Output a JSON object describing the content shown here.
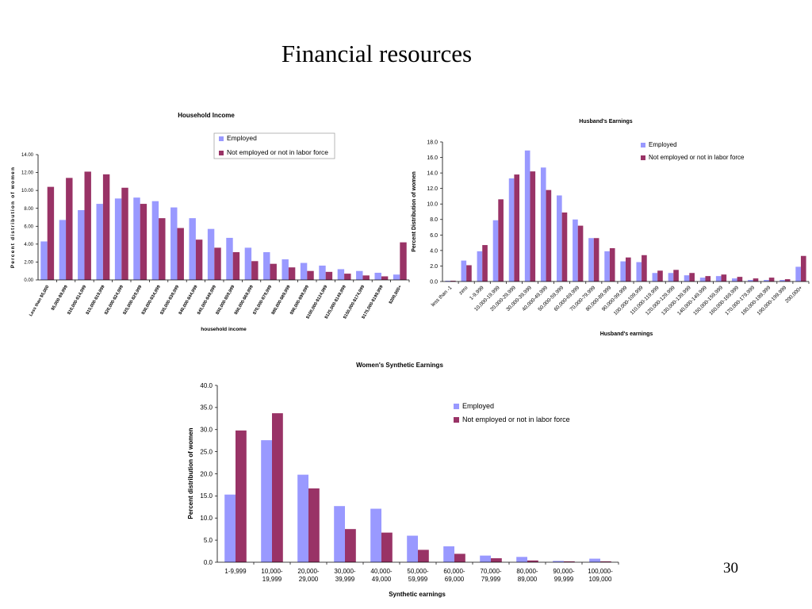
{
  "slide": {
    "title": "Financial resources",
    "page_number": "30"
  },
  "colors": {
    "employed": "#9999ff",
    "not_employed": "#993366",
    "axis": "#000000"
  },
  "chart_data": [
    {
      "id": "household-income",
      "type": "bar",
      "title": "Household Income",
      "xlabel": "household income",
      "ylabel": "Percent distribution of women",
      "ylim": [
        0,
        14
      ],
      "yticks": [
        "0.00",
        "2.00",
        "4.00",
        "6.00",
        "8.00",
        "10.00",
        "12.00",
        "14.00"
      ],
      "legend_position": "top-center",
      "categories": [
        "Less than $5,000",
        "$5,000-$9,999",
        "$10,000-$14,999",
        "$15,000-$19,999",
        "$20,000-$24,999",
        "$25,000-$29,999",
        "$30,000-$34,999",
        "$35,000-$39,999",
        "$40,000-$44,999",
        "$45,000-$49,999",
        "$50,000-$59,999",
        "$60,000-$69,999",
        "$70,000-$79,999",
        "$80,000-$89,999",
        "$90,000-$99,999",
        "$100,000-$124,999",
        "$125,000-$149,999",
        "$150,000-$174,999",
        "$175,000-$199,999",
        "$200,000+"
      ],
      "series": [
        {
          "name": "Employed",
          "values": [
            4.3,
            6.7,
            7.8,
            8.5,
            9.1,
            9.2,
            8.8,
            8.1,
            6.9,
            5.7,
            4.7,
            3.6,
            3.1,
            2.3,
            1.9,
            1.6,
            1.2,
            1.0,
            0.8,
            0.6
          ]
        },
        {
          "name": "Not employed or not in labor force",
          "values": [
            10.4,
            11.4,
            12.1,
            11.8,
            10.3,
            8.5,
            6.9,
            5.8,
            4.5,
            3.6,
            3.1,
            2.1,
            1.8,
            1.4,
            1.0,
            0.9,
            0.7,
            0.5,
            0.4,
            4.2
          ]
        }
      ]
    },
    {
      "id": "husbands-earnings",
      "type": "bar",
      "title": "Husband's Earnings",
      "xlabel": "Husband's earnings",
      "ylabel": "Percent Distribution of women",
      "ylim": [
        0,
        18
      ],
      "yticks": [
        "0.0",
        "2.0",
        "4.0",
        "6.0",
        "8.0",
        "10.0",
        "12.0",
        "14.0",
        "16.0",
        "18.0"
      ],
      "legend_position": "top-right",
      "categories": [
        "less than -1",
        "zero",
        "1-9,999",
        "10,000-19,999",
        "20,000-29,999",
        "30,000-39,999",
        "40,000-49,999",
        "50,000-59,999",
        "60,000-69,999",
        "70,000-79,999",
        "80,000-89,999",
        "90,000-99,999",
        "100,000-109,999",
        "110,000-119,999",
        "120,000-129,999",
        "130,000-139,999",
        "140,000-149,999",
        "150,000-159,999",
        "160,000-169,999",
        "170,000-179,999",
        "180,000-189,999",
        "190,000-199,999",
        "200,000+"
      ],
      "series": [
        {
          "name": "Employed",
          "values": [
            0.1,
            2.7,
            3.9,
            7.9,
            13.3,
            16.9,
            14.7,
            11.1,
            8.0,
            5.6,
            3.9,
            2.6,
            2.5,
            1.1,
            1.1,
            0.8,
            0.5,
            0.7,
            0.4,
            0.2,
            0.2,
            0.2,
            1.9
          ]
        },
        {
          "name": "Not employed or not in labor force",
          "values": [
            0.1,
            2.1,
            4.7,
            10.6,
            13.8,
            14.2,
            11.8,
            8.9,
            7.2,
            5.6,
            4.3,
            3.1,
            3.4,
            1.4,
            1.5,
            1.1,
            0.7,
            0.9,
            0.6,
            0.4,
            0.5,
            0.3,
            3.3
          ]
        }
      ]
    },
    {
      "id": "womens-synthetic-earnings",
      "type": "bar",
      "title": "Women's Synthetic Earnings",
      "xlabel": "Synthetic earnings",
      "ylabel": "Percent distribution of women",
      "ylim": [
        0,
        40
      ],
      "yticks": [
        "0.0",
        "5.0",
        "10.0",
        "15.0",
        "20.0",
        "25.0",
        "30.0",
        "35.0",
        "40.0"
      ],
      "legend_position": "top-right",
      "categories": [
        "1-9,999",
        "10,000-19,999",
        "20,000-29,000",
        "30,000-39,999",
        "40,000-49,000",
        "50,000-59,999",
        "60,000-69,000",
        "70,000-79,999",
        "80,000-89,000",
        "90,000-99,999",
        "100,000-109,000"
      ],
      "category_lines": [
        [
          "1-9,999"
        ],
        [
          "10,000-",
          "19,999"
        ],
        [
          "20,000-",
          "29,000"
        ],
        [
          "30,000-",
          "39,999"
        ],
        [
          "40,000-",
          "49,000"
        ],
        [
          "50,000-",
          "59,999"
        ],
        [
          "60,000-",
          "69,000"
        ],
        [
          "70,000-",
          "79,999"
        ],
        [
          "80,000-",
          "89,000"
        ],
        [
          "90,000-",
          "99,999"
        ],
        [
          "100,000-",
          "109,000"
        ]
      ],
      "series": [
        {
          "name": "Employed",
          "values": [
            15.3,
            27.6,
            19.8,
            12.7,
            12.1,
            6.0,
            3.6,
            1.5,
            1.2,
            0.3,
            0.8
          ]
        },
        {
          "name": "Not employed or not in labor force",
          "values": [
            29.8,
            33.7,
            16.7,
            7.5,
            6.7,
            2.8,
            1.9,
            0.9,
            0.4,
            0.2,
            0.2
          ]
        }
      ]
    }
  ]
}
